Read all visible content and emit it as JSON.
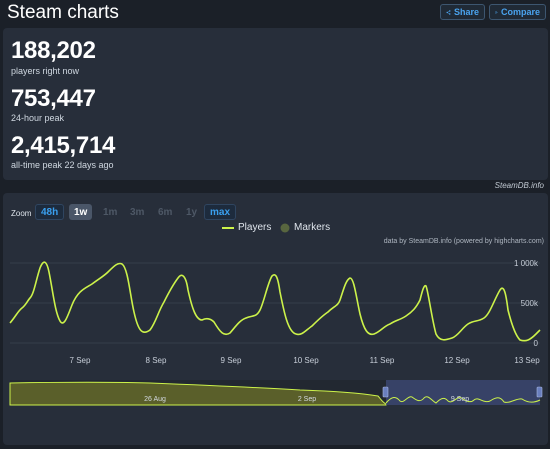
{
  "header": {
    "title": "Steam charts",
    "share_label": "Share",
    "compare_label": "Compare"
  },
  "stats": [
    {
      "value": "188,202",
      "label": "players right now"
    },
    {
      "value": "753,447",
      "label": "24-hour peak"
    },
    {
      "value": "2,415,714",
      "label": "all-time peak 22 days ago"
    }
  ],
  "credit": "SteamDB.info",
  "zoom": {
    "label": "Zoom",
    "buttons": [
      {
        "label": "48h",
        "state": "blue"
      },
      {
        "label": "1w",
        "state": "active"
      },
      {
        "label": "1m",
        "state": "disabled"
      },
      {
        "label": "3m",
        "state": "disabled"
      },
      {
        "label": "6m",
        "state": "disabled"
      },
      {
        "label": "1y",
        "state": "disabled"
      },
      {
        "label": "max",
        "state": "blue"
      }
    ]
  },
  "legend": {
    "players": "Players",
    "markers": "Markers"
  },
  "footer_credit": "data by SteamDB.info (powered by highcharts.com)",
  "colors": {
    "line": "#ccf24a",
    "grid": "#353d4a",
    "panel": "#272e3a",
    "navigator_fill": "#5a5f2a",
    "selection": "#3f4b7a"
  },
  "chart_data": {
    "type": "line",
    "series": [
      {
        "name": "Players",
        "peaks": [
          1000000,
          1000000,
          820000,
          870000,
          870000,
          810000,
          760000,
          730000
        ],
        "troughs": [
          30000,
          30000,
          30000,
          30000,
          30000,
          30000,
          30000
        ]
      }
    ],
    "x_ticks": [
      "7 Sep",
      "8 Sep",
      "9 Sep",
      "10 Sep",
      "11 Sep",
      "12 Sep",
      "13 Sep"
    ],
    "y_ticks": [
      "0",
      "500k",
      "1 000k"
    ],
    "ylim": [
      0,
      1000000
    ],
    "navigator": {
      "x_ticks": [
        "26 Aug",
        "2 Sep",
        "9 Sep"
      ]
    }
  }
}
